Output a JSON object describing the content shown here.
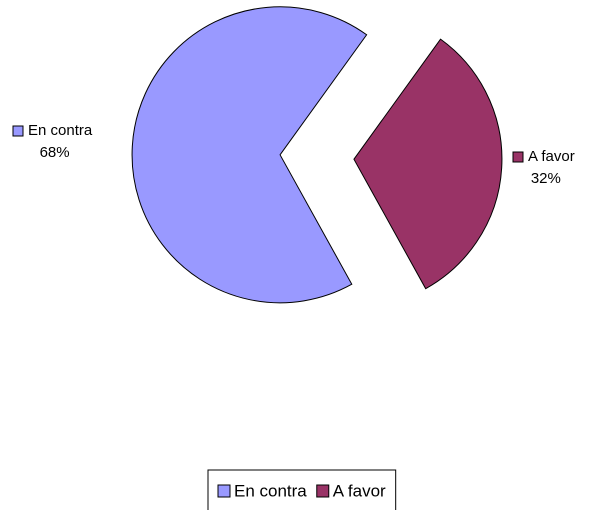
{
  "chart_data": {
    "type": "pie",
    "categories": [
      "En contra",
      "A favor"
    ],
    "values": [
      68,
      32
    ],
    "value_labels": [
      "68%",
      "32%"
    ],
    "colors": [
      "#9999ff",
      "#993366"
    ],
    "legend": "bottom"
  }
}
